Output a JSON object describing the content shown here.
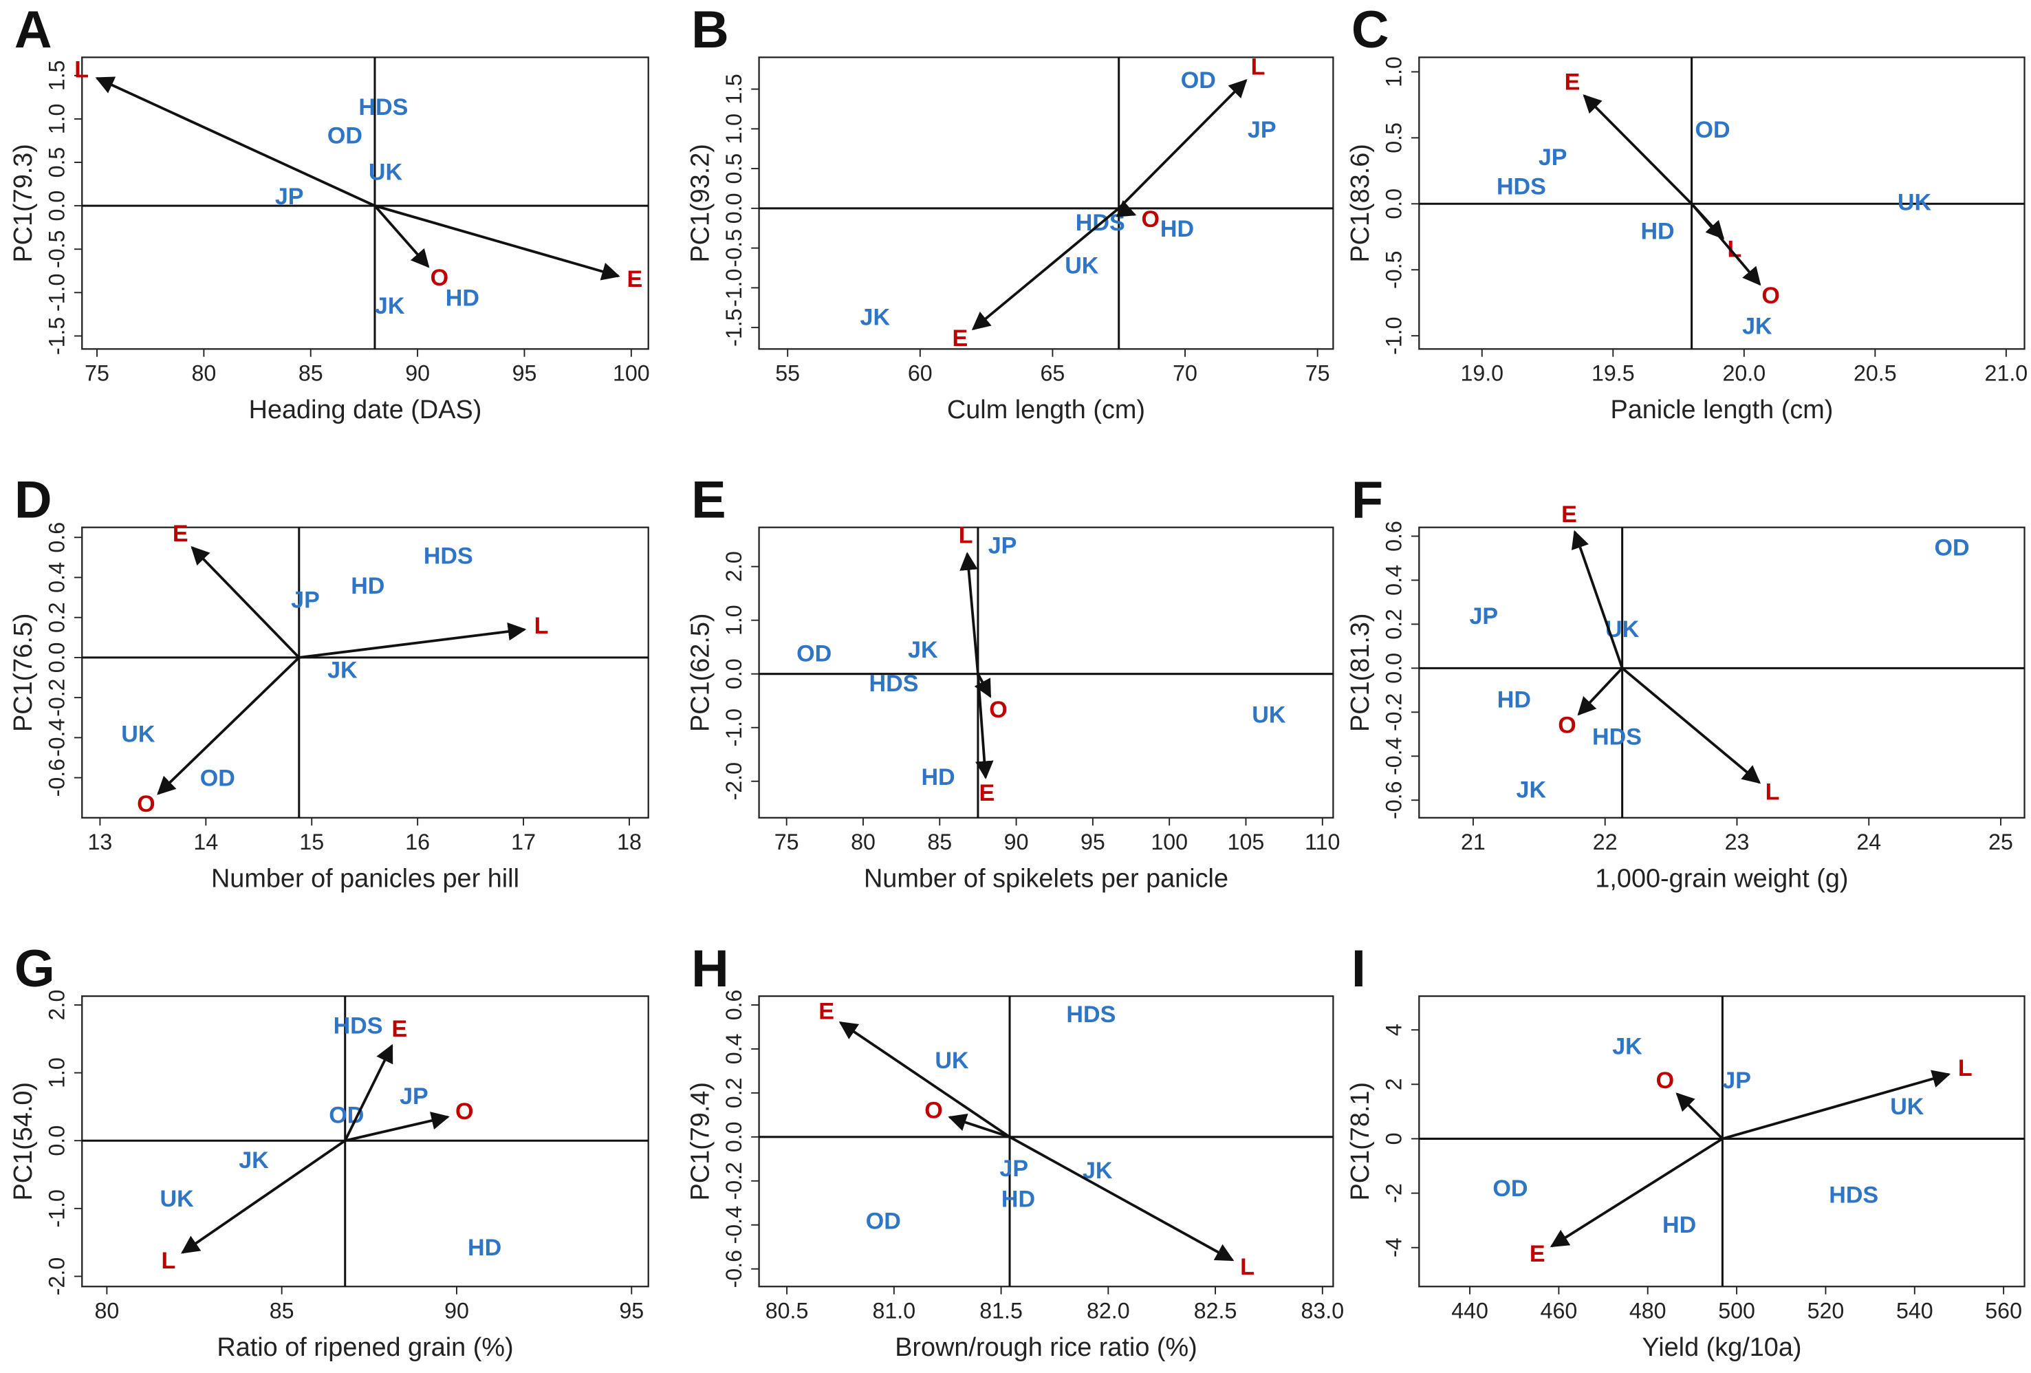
{
  "chart_data": [
    {
      "type": "biplot",
      "panel": "A",
      "xlabel": "Heading date (DAS)",
      "ylabel": "PC1(79.3)",
      "xlim": [
        74.3,
        100.8
      ],
      "ylim": [
        -1.65,
        1.71
      ],
      "xticks": [
        75,
        80,
        85,
        90,
        95,
        100
      ],
      "yticks": [
        -1.5,
        {
          "value": -1,
          "label": "-1.0"
        },
        -0.5,
        {
          "value": 0,
          "label": "0.0"
        },
        0.5,
        {
          "value": 1,
          "label": "1.0"
        },
        1.5
      ],
      "vline": 88.0,
      "points": {
        "labels": [
          "HDS",
          "OD",
          "UK",
          "JP",
          "JK",
          "HD"
        ],
        "x": [
          88.4,
          86.6,
          88.5,
          84.0,
          88.7,
          92.1
        ],
        "y": [
          1.12,
          0.79,
          0.37,
          0.09,
          -1.17,
          -1.08
        ],
        "color": "#2e75c6"
      },
      "arrows": {
        "labels": [
          "L",
          "E",
          "O"
        ],
        "x": [
          75.0,
          99.4,
          90.5
        ],
        "y": [
          1.47,
          -0.81,
          -0.7
        ],
        "color": "#c00000"
      }
    },
    {
      "type": "biplot",
      "panel": "B",
      "xlabel": "Culm length (cm)",
      "ylabel": "PC1(93.2)",
      "xlim": [
        53.92,
        75.59
      ],
      "ylim": [
        -1.77,
        1.9
      ],
      "xticks": [
        55,
        60,
        65,
        70,
        75
      ],
      "yticks": [
        -1.5,
        {
          "value": -1,
          "label": "-1.0"
        },
        -0.5,
        {
          "value": 0,
          "label": "0.0"
        },
        0.5,
        {
          "value": 1,
          "label": "1.0"
        },
        1.5
      ],
      "vline": 67.5,
      "points": {
        "labels": [
          "OD",
          "JP",
          "HDS",
          "HD",
          "UK",
          "JK"
        ],
        "x": [
          70.5,
          72.9,
          66.8,
          69.7,
          66.1,
          58.3
        ],
        "y": [
          1.59,
          0.97,
          -0.2,
          -0.28,
          -0.74,
          -1.39
        ],
        "color": "#2e75c6"
      },
      "arrows": {
        "labels": [
          "L",
          "E",
          "O"
        ],
        "x": [
          72.3,
          62.0,
          68.1
        ],
        "y": [
          1.61,
          -1.52,
          -0.08
        ],
        "color": "#c00000"
      }
    },
    {
      "type": "biplot",
      "panel": "C",
      "xlabel": "Panicle length (cm)",
      "ylabel": "PC1(83.6)",
      "xlim": [
        18.76,
        21.07
      ],
      "ylim": [
        -1.1,
        1.11
      ],
      "xticks": [
        {
          "value": 19,
          "label": "19.0"
        },
        19.5,
        {
          "value": 20,
          "label": "20.0"
        },
        20.5,
        {
          "value": 21,
          "label": "21.0"
        }
      ],
      "yticks": [
        {
          "value": -1,
          "label": "-1.0"
        },
        -0.5,
        {
          "value": 0,
          "label": "0.0"
        },
        0.5,
        {
          "value": 1,
          "label": "1.0"
        }
      ],
      "vline": 19.8,
      "points": {
        "labels": [
          "OD",
          "JP",
          "HDS",
          "UK",
          "HD",
          "JK"
        ],
        "x": [
          19.88,
          19.27,
          19.15,
          20.65,
          19.67,
          20.05
        ],
        "y": [
          0.55,
          0.34,
          0.12,
          0.0,
          -0.22,
          -0.94
        ],
        "color": "#2e75c6"
      },
      "arrows": {
        "labels": [
          "E",
          "L",
          "O"
        ],
        "x": [
          19.39,
          19.92,
          20.06
        ],
        "y": [
          0.82,
          -0.26,
          -0.61
        ],
        "color": "#c00000"
      }
    },
    {
      "type": "biplot",
      "panel": "D",
      "xlabel": "Number of panicles per hill",
      "ylabel": "PC1(76.5)",
      "xlim": [
        12.83,
        18.18
      ],
      "ylim": [
        -0.8,
        0.65
      ],
      "xticks": [
        13,
        14,
        15,
        16,
        17,
        18
      ],
      "yticks": [
        -0.6,
        -0.4,
        -0.2,
        {
          "value": 0,
          "label": "0.0"
        },
        0.2,
        0.4,
        0.6
      ],
      "vline": 14.88,
      "points": {
        "labels": [
          "HDS",
          "HD",
          "JP",
          "JK",
          "UK",
          "OD"
        ],
        "x": [
          16.29,
          15.53,
          14.94,
          15.29,
          13.36,
          14.11
        ],
        "y": [
          0.5,
          0.35,
          0.28,
          -0.07,
          -0.39,
          -0.61
        ],
        "color": "#2e75c6"
      },
      "arrows": {
        "labels": [
          "E",
          "L",
          "O"
        ],
        "x": [
          13.87,
          17.01,
          13.55
        ],
        "y": [
          0.55,
          0.14,
          -0.68
        ],
        "color": "#c00000"
      }
    },
    {
      "type": "biplot",
      "panel": "E",
      "xlabel": "Number of spikelets per panicle",
      "ylabel": "PC1(62.5)",
      "xlim": [
        73.2,
        110.7
      ],
      "ylim": [
        -2.68,
        2.73
      ],
      "xticks": [
        75,
        80,
        85,
        90,
        95,
        100,
        105,
        110
      ],
      "yticks": [
        {
          "value": -2,
          "label": "-2.0"
        },
        {
          "value": -1,
          "label": "-1.0"
        },
        {
          "value": 0,
          "label": "0.0"
        },
        {
          "value": 1,
          "label": "1.0"
        },
        {
          "value": 2,
          "label": "2.0"
        }
      ],
      "vline": 87.5,
      "points": {
        "labels": [
          "JP",
          "OD",
          "JK",
          "HDS",
          "UK",
          "HD"
        ],
        "x": [
          89.1,
          76.8,
          83.9,
          82.0,
          106.5,
          84.9
        ],
        "y": [
          2.36,
          0.35,
          0.42,
          -0.21,
          -0.79,
          -1.95
        ],
        "color": "#2e75c6"
      },
      "arrows": {
        "labels": [
          "L",
          "O",
          "E"
        ],
        "x": [
          86.8,
          88.3,
          88.0
        ],
        "y": [
          2.24,
          -0.42,
          -1.93
        ],
        "color": "#c00000"
      }
    },
    {
      "type": "biplot",
      "panel": "F",
      "xlabel": "1,000-grain weight (g)",
      "ylabel": "PC1(81.3)",
      "xlim": [
        20.59,
        25.18
      ],
      "ylim": [
        -0.68,
        0.64
      ],
      "xticks": [
        21,
        22,
        23,
        24,
        25
      ],
      "yticks": [
        -0.6,
        -0.4,
        -0.2,
        {
          "value": 0,
          "label": "0.0"
        },
        0.2,
        0.4,
        0.6
      ],
      "vline": 22.13,
      "points": {
        "labels": [
          "OD",
          "JP",
          "UK",
          "HD",
          "HDS",
          "JK"
        ],
        "x": [
          24.63,
          21.08,
          22.13,
          21.31,
          22.09,
          21.44
        ],
        "y": [
          0.54,
          0.23,
          0.17,
          -0.15,
          -0.32,
          -0.56
        ],
        "color": "#2e75c6"
      },
      "arrows": {
        "labels": [
          "E",
          "L",
          "O"
        ],
        "x": [
          21.77,
          23.17,
          21.8
        ],
        "y": [
          0.62,
          -0.52,
          -0.21
        ],
        "color": "#c00000"
      }
    },
    {
      "type": "biplot",
      "panel": "G",
      "xlabel": "Ratio of ripened grain (%)",
      "ylabel": "PC1(54.0)",
      "xlim": [
        79.29,
        95.48
      ],
      "ylim": [
        -2.15,
        2.13
      ],
      "xticks": [
        80,
        85,
        90,
        95
      ],
      "yticks": [
        {
          "value": -2,
          "label": "-2.0"
        },
        {
          "value": -1,
          "label": "-1.0"
        },
        {
          "value": 0,
          "label": "0.0"
        },
        {
          "value": 1,
          "label": "1.0"
        },
        {
          "value": 2,
          "label": "2.0"
        }
      ],
      "vline": 86.81,
      "points": {
        "labels": [
          "HDS",
          "OD",
          "JP",
          "JK",
          "UK",
          "HD"
        ],
        "x": [
          87.18,
          86.85,
          88.78,
          84.2,
          82.0,
          90.8
        ],
        "y": [
          1.67,
          0.35,
          0.63,
          -0.31,
          -0.88,
          -1.6
        ],
        "color": "#2e75c6"
      },
      "arrows": {
        "labels": [
          "E",
          "O",
          "L"
        ],
        "x": [
          88.15,
          89.75,
          82.16
        ],
        "y": [
          1.4,
          0.35,
          -1.65
        ],
        "color": "#c00000"
      }
    },
    {
      "type": "biplot",
      "panel": "H",
      "xlabel": "Brown/rough rice ratio (%)",
      "ylabel": "PC1(79.4)",
      "xlim": [
        80.37,
        83.05
      ],
      "ylim": [
        -0.68,
        0.64
      ],
      "xticks": [
        80.5,
        {
          "value": 81,
          "label": "81.0"
        },
        81.5,
        {
          "value": 82,
          "label": "82.0"
        },
        82.5,
        {
          "value": 83,
          "label": "83.0"
        }
      ],
      "yticks": [
        -0.6,
        -0.4,
        -0.2,
        {
          "value": 0,
          "label": "0.0"
        },
        0.2,
        0.4,
        0.6
      ],
      "vline": 81.54,
      "points": {
        "labels": [
          "HDS",
          "UK",
          "JP",
          "HD",
          "JK",
          "OD"
        ],
        "x": [
          81.92,
          81.27,
          81.56,
          81.58,
          81.95,
          80.95
        ],
        "y": [
          0.55,
          0.34,
          -0.15,
          -0.29,
          -0.16,
          -0.39
        ],
        "color": "#2e75c6"
      },
      "arrows": {
        "labels": [
          "E",
          "O",
          "L"
        ],
        "x": [
          80.75,
          81.26,
          82.58
        ],
        "y": [
          0.52,
          0.09,
          -0.56
        ],
        "color": "#c00000"
      }
    },
    {
      "type": "biplot",
      "panel": "I",
      "xlabel": "Yield (kg/10a)",
      "ylabel": "PC1(78.1)",
      "xlim": [
        428.6,
        564.7
      ],
      "ylim": [
        -5.43,
        5.24
      ],
      "xticks": [
        440,
        460,
        480,
        500,
        520,
        540,
        560
      ],
      "yticks": [
        -4,
        -2,
        0,
        2,
        4
      ],
      "vline": 496.8,
      "points": {
        "labels": [
          "JK",
          "JP",
          "UK",
          "OD",
          "HDS",
          "HD"
        ],
        "x": [
          475.4,
          500.0,
          538.3,
          449.1,
          526.3,
          487.1
        ],
        "y": [
          3.33,
          2.08,
          1.12,
          -1.89,
          -2.13,
          -3.23
        ],
        "color": "#2e75c6"
      },
      "arrows": {
        "labels": [
          "L",
          "O",
          "E"
        ],
        "x": [
          547.7,
          486.6,
          458.4
        ],
        "y": [
          2.37,
          1.65,
          -3.95
        ],
        "color": "#c00000"
      }
    }
  ]
}
